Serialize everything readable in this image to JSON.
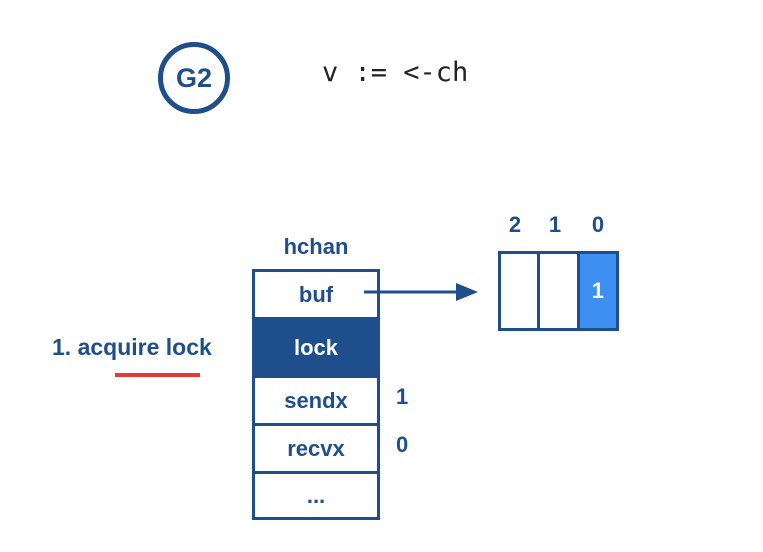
{
  "goroutine": {
    "label": "G2"
  },
  "code": {
    "statement": "v := <-ch"
  },
  "step": {
    "label": "1. acquire lock",
    "underline_color": "#e53935"
  },
  "hchan": {
    "title": "hchan",
    "fields": {
      "buf": "buf",
      "lock": "lock",
      "sendx": "sendx",
      "recvx": "recvx",
      "rest": "..."
    },
    "values": {
      "sendx": "1",
      "recvx": "0"
    }
  },
  "buffer": {
    "indices": [
      "2",
      "1",
      "0"
    ],
    "slots": [
      "",
      "",
      "1"
    ],
    "filled_color": "#3d8ff2"
  },
  "colors": {
    "primary": "#1f4e8c",
    "accent": "#3d8ff2",
    "highlight": "#e53935"
  }
}
